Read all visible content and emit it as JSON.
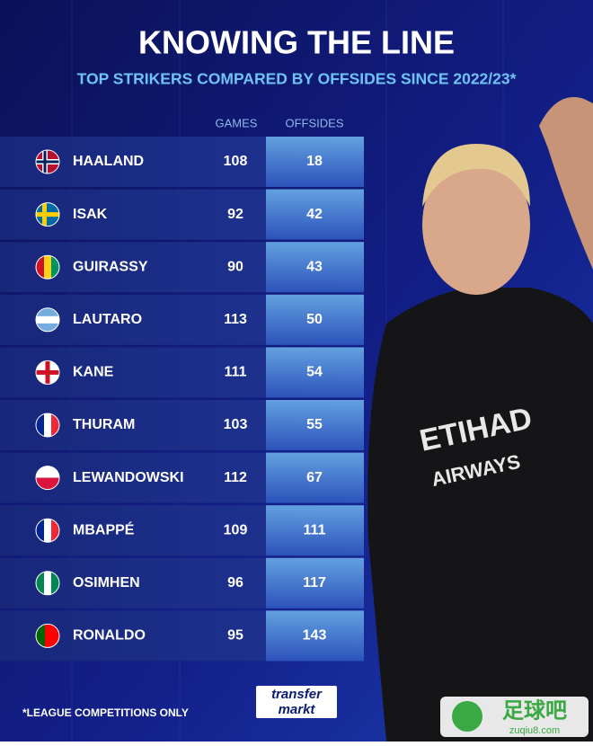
{
  "header": {
    "title": "KNOWING THE LINE",
    "subtitle": "TOP STRIKERS COMPARED BY OFFSIDES SINCE 2022/23*"
  },
  "table": {
    "columns": [
      "GAMES",
      "OFFSIDES"
    ],
    "rows": [
      [
        "HAALAND",
        "108",
        "18"
      ],
      [
        "ISAK",
        "92",
        "42"
      ],
      [
        "GUIRASSY",
        "90",
        "43"
      ],
      [
        "LAUTARO",
        "113",
        "50"
      ],
      [
        "KANE",
        "111",
        "54"
      ],
      [
        "THURAM",
        "103",
        "55"
      ],
      [
        "LEWANDOWSKI",
        "112",
        "67"
      ],
      [
        "MBAPPÉ",
        "109",
        "111"
      ],
      [
        "OSIMHEN",
        "96",
        "117"
      ],
      [
        "RONALDO",
        "95",
        "143"
      ]
    ]
  },
  "footnote": "*LEAGUE COMPETITIONS ONLY",
  "logo": {
    "top": "transfer",
    "bottom": "markt"
  },
  "watermark": {
    "brand": "足球吧",
    "site": "zuqiu8.com"
  }
}
